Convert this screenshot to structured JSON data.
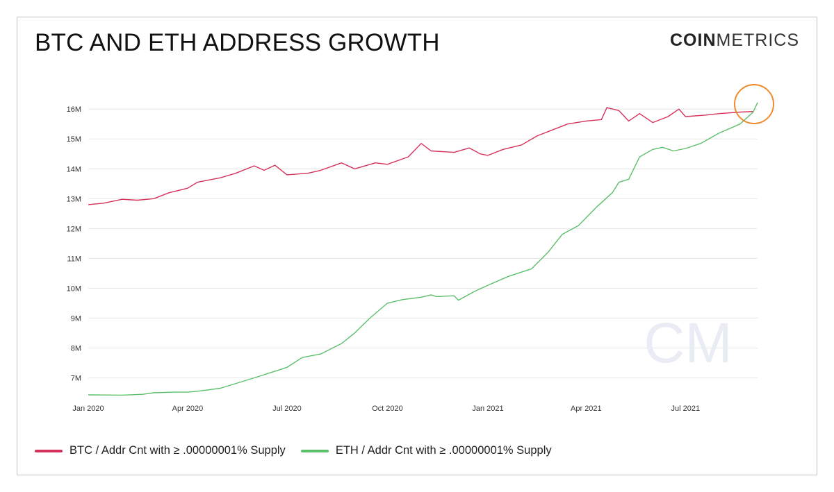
{
  "header": {
    "title": "BTC AND ETH ADDRESS GROWTH",
    "logo_bold": "COIN",
    "logo_light": "METRICS",
    "watermark": "CM"
  },
  "colors": {
    "btc": "#d6315a",
    "eth": "#5cbf6b",
    "highlight": "#f08a2a",
    "grid": "#e6e6e6"
  },
  "chart_data": {
    "type": "line",
    "title": "BTC AND ETH ADDRESS GROWTH",
    "xlabel": "",
    "ylabel": "",
    "x_ticks": [
      "Jan 2020",
      "Apr 2020",
      "Jul 2020",
      "Oct 2020",
      "Jan 2021",
      "Apr 2021",
      "Jul 2021"
    ],
    "y_ticks": [
      "7M",
      "8M",
      "9M",
      "10M",
      "11M",
      "12M",
      "13M",
      "14M",
      "15M",
      "16M"
    ],
    "ylim": [
      6.5,
      16.4
    ],
    "xlim": [
      "2020-01-01",
      "2021-09-05"
    ],
    "grid": "horizontal",
    "legend_position": "bottom-left",
    "series": [
      {
        "name": "BTC / Addr Cnt with ≥ .00000001% Supply",
        "color": "#d6315a",
        "points": [
          [
            "2020-01-01",
            12.8
          ],
          [
            "2020-01-15",
            12.85
          ],
          [
            "2020-02-01",
            12.98
          ],
          [
            "2020-02-15",
            12.95
          ],
          [
            "2020-03-01",
            13.0
          ],
          [
            "2020-03-15",
            13.2
          ],
          [
            "2020-04-01",
            13.35
          ],
          [
            "2020-04-10",
            13.55
          ],
          [
            "2020-05-01",
            13.7
          ],
          [
            "2020-05-15",
            13.85
          ],
          [
            "2020-06-01",
            14.1
          ],
          [
            "2020-06-10",
            13.95
          ],
          [
            "2020-06-20",
            14.12
          ],
          [
            "2020-07-01",
            13.8
          ],
          [
            "2020-07-20",
            13.85
          ],
          [
            "2020-08-01",
            13.95
          ],
          [
            "2020-08-20",
            14.2
          ],
          [
            "2020-09-01",
            14.0
          ],
          [
            "2020-09-20",
            14.2
          ],
          [
            "2020-10-01",
            14.15
          ],
          [
            "2020-10-20",
            14.4
          ],
          [
            "2020-11-01",
            14.85
          ],
          [
            "2020-11-10",
            14.6
          ],
          [
            "2020-12-01",
            14.55
          ],
          [
            "2020-12-15",
            14.7
          ],
          [
            "2020-12-25",
            14.5
          ],
          [
            "2021-01-01",
            14.45
          ],
          [
            "2021-01-15",
            14.65
          ],
          [
            "2021-02-01",
            14.8
          ],
          [
            "2021-02-15",
            15.1
          ],
          [
            "2021-03-01",
            15.3
          ],
          [
            "2021-03-15",
            15.5
          ],
          [
            "2021-04-01",
            15.6
          ],
          [
            "2021-04-15",
            15.65
          ],
          [
            "2021-04-20",
            16.05
          ],
          [
            "2021-05-01",
            15.95
          ],
          [
            "2021-05-10",
            15.6
          ],
          [
            "2021-05-20",
            15.85
          ],
          [
            "2021-06-01",
            15.55
          ],
          [
            "2021-06-15",
            15.75
          ],
          [
            "2021-06-25",
            16.0
          ],
          [
            "2021-07-01",
            15.75
          ],
          [
            "2021-07-20",
            15.8
          ],
          [
            "2021-08-01",
            15.85
          ],
          [
            "2021-08-20",
            15.9
          ],
          [
            "2021-09-01",
            15.92
          ]
        ]
      },
      {
        "name": "ETH / Addr Cnt with ≥ .00000001% Supply",
        "color": "#5cbf6b",
        "points": [
          [
            "2020-01-01",
            6.43
          ],
          [
            "2020-02-01",
            6.42
          ],
          [
            "2020-02-20",
            6.45
          ],
          [
            "2020-03-01",
            6.5
          ],
          [
            "2020-03-20",
            6.52
          ],
          [
            "2020-04-01",
            6.52
          ],
          [
            "2020-04-10",
            6.55
          ],
          [
            "2020-05-01",
            6.65
          ],
          [
            "2020-06-01",
            7.0
          ],
          [
            "2020-07-01",
            7.35
          ],
          [
            "2020-07-15",
            7.68
          ],
          [
            "2020-08-01",
            7.8
          ],
          [
            "2020-08-20",
            8.15
          ],
          [
            "2020-09-01",
            8.5
          ],
          [
            "2020-09-15",
            9.0
          ],
          [
            "2020-10-01",
            9.5
          ],
          [
            "2020-10-15",
            9.62
          ],
          [
            "2020-11-01",
            9.7
          ],
          [
            "2020-11-10",
            9.78
          ],
          [
            "2020-11-15",
            9.72
          ],
          [
            "2020-12-01",
            9.75
          ],
          [
            "2020-12-05",
            9.6
          ],
          [
            "2020-12-20",
            9.9
          ],
          [
            "2021-01-01",
            10.1
          ],
          [
            "2021-01-20",
            10.4
          ],
          [
            "2021-02-10",
            10.65
          ],
          [
            "2021-02-25",
            11.2
          ],
          [
            "2021-03-10",
            11.8
          ],
          [
            "2021-03-25",
            12.1
          ],
          [
            "2021-04-10",
            12.7
          ],
          [
            "2021-04-25",
            13.2
          ],
          [
            "2021-05-01",
            13.55
          ],
          [
            "2021-05-10",
            13.65
          ],
          [
            "2021-05-20",
            14.4
          ],
          [
            "2021-06-01",
            14.65
          ],
          [
            "2021-06-10",
            14.72
          ],
          [
            "2021-06-20",
            14.6
          ],
          [
            "2021-07-01",
            14.68
          ],
          [
            "2021-07-15",
            14.85
          ],
          [
            "2021-08-01",
            15.2
          ],
          [
            "2021-08-20",
            15.5
          ],
          [
            "2021-09-01",
            15.9
          ],
          [
            "2021-09-05",
            16.22
          ]
        ]
      }
    ]
  },
  "legend": {
    "btc_label": "BTC / Addr Cnt with ≥ .00000001% Supply",
    "eth_label": "ETH / Addr Cnt with ≥ .00000001% Supply"
  }
}
